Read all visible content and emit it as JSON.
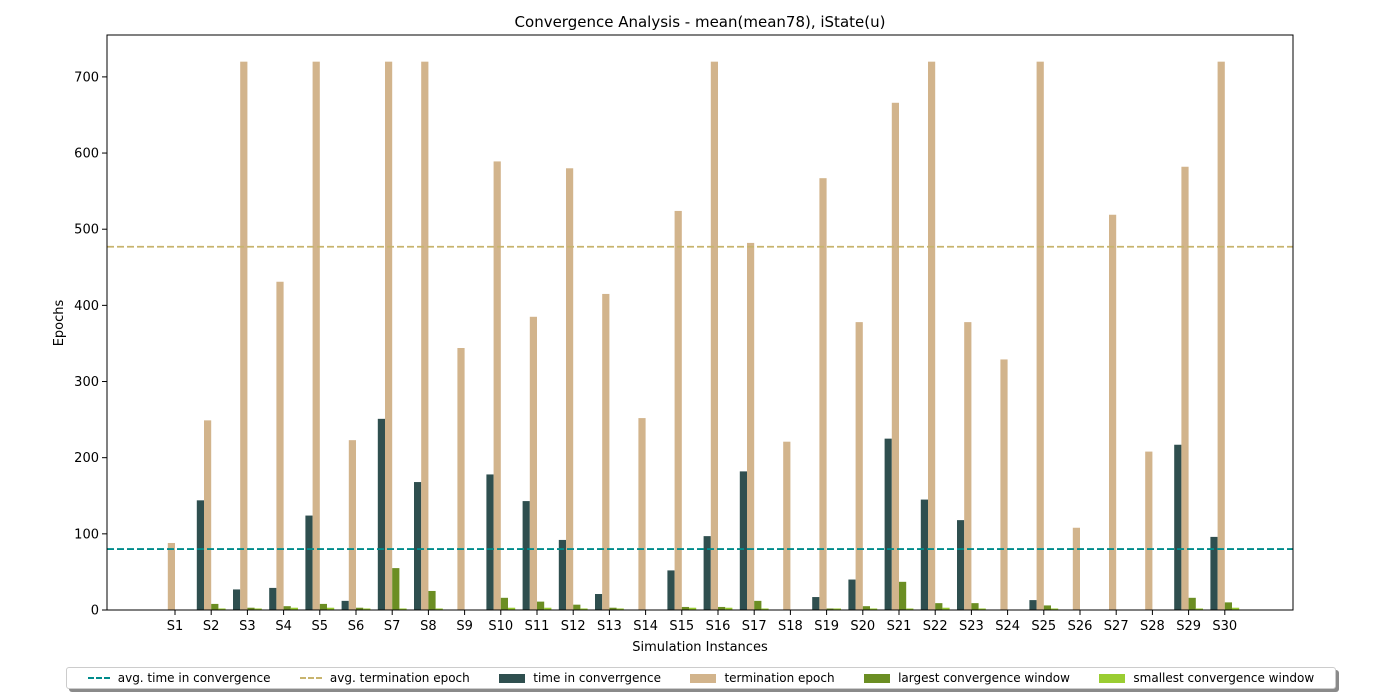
{
  "chart_data": {
    "type": "bar",
    "title": "Convergence Analysis - mean(mean78), iState(u)",
    "xlabel": "Simulation Instances",
    "ylabel": "Epochs",
    "ylim": [
      0,
      755
    ],
    "yticks": [
      0,
      100,
      200,
      300,
      400,
      500,
      600,
      700
    ],
    "grid": false,
    "legend_placement": "bottom-center",
    "categories": [
      "S1",
      "S2",
      "S3",
      "S4",
      "S5",
      "S6",
      "S7",
      "S8",
      "S9",
      "S10",
      "S11",
      "S12",
      "S13",
      "S14",
      "S15",
      "S16",
      "S17",
      "S18",
      "S19",
      "S20",
      "S21",
      "S22",
      "S23",
      "S24",
      "S25",
      "S26",
      "S27",
      "S28",
      "S29",
      "S30"
    ],
    "series": [
      {
        "name": "time in converrgence",
        "color": "#2f4f4f",
        "values": [
          0,
          144,
          27,
          29,
          124,
          12,
          251,
          168,
          0,
          178,
          143,
          92,
          21,
          0,
          52,
          97,
          182,
          0,
          17,
          40,
          225,
          145,
          118,
          0,
          13,
          0,
          0,
          0,
          217,
          96
        ]
      },
      {
        "name": "termination epoch",
        "color": "#d2b48c",
        "values": [
          88,
          249,
          720,
          431,
          720,
          223,
          720,
          720,
          344,
          589,
          385,
          580,
          415,
          252,
          524,
          720,
          482,
          221,
          567,
          378,
          666,
          720,
          378,
          329,
          720,
          108,
          519,
          208,
          582,
          720
        ]
      },
      {
        "name": "largest convergence window",
        "color": "#6b8e23",
        "values": [
          0,
          8,
          3,
          5,
          8,
          3,
          55,
          25,
          0,
          16,
          11,
          7,
          3,
          0,
          4,
          4,
          12,
          0,
          2,
          5,
          37,
          9,
          9,
          0,
          6,
          0,
          0,
          0,
          16,
          10
        ]
      },
      {
        "name": "smallest convergence window",
        "color": "#9acd32",
        "values": [
          0,
          2,
          2,
          3,
          3,
          2,
          2,
          2,
          0,
          3,
          3,
          2,
          2,
          0,
          3,
          3,
          2,
          0,
          2,
          2,
          2,
          3,
          2,
          0,
          2,
          0,
          0,
          0,
          2,
          3
        ]
      }
    ],
    "reference_lines": [
      {
        "name": "avg. time in convergence",
        "value": 80,
        "color": "#008b8b"
      },
      {
        "name": "avg. termination epoch",
        "value": 477,
        "color": "#c8b46e"
      }
    ]
  }
}
